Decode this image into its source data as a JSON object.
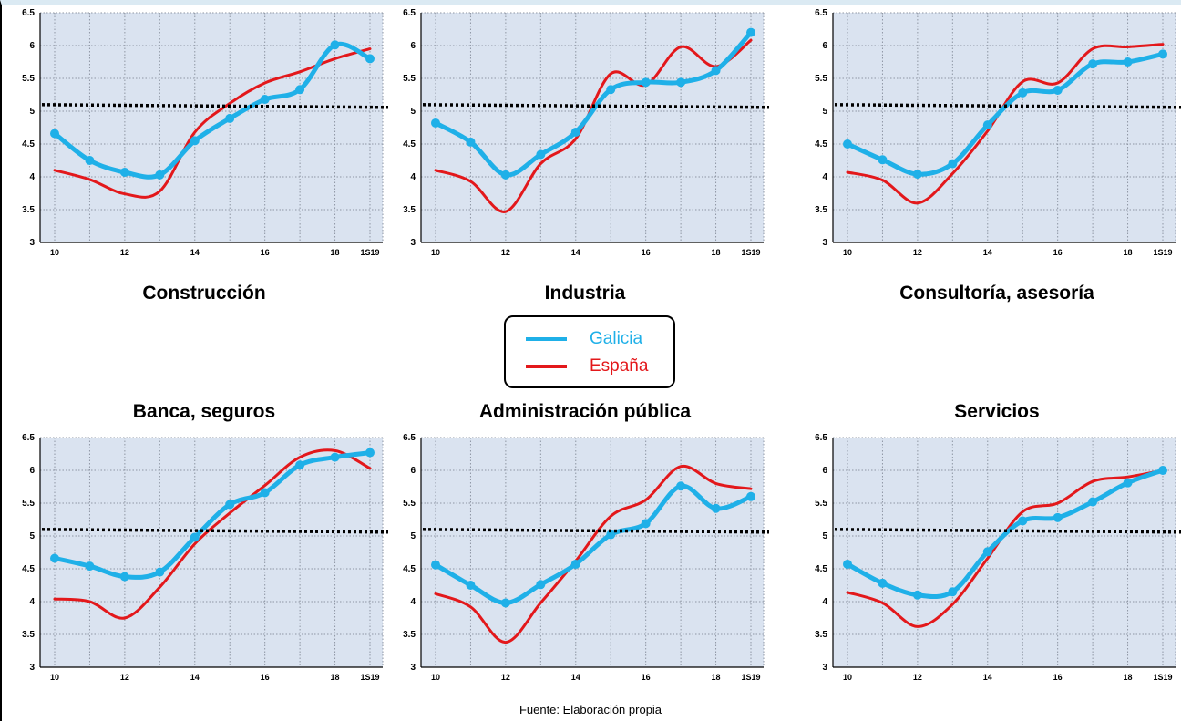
{
  "legend": {
    "galicia": {
      "label": "Galicia",
      "color": "#1fb0e8"
    },
    "espana": {
      "label": "España",
      "color": "#e3181b"
    }
  },
  "source": "Fuente: Elaboración propia",
  "chart_data": [
    {
      "type": "line",
      "title": "Construcción",
      "x": [
        10,
        11,
        12,
        13,
        14,
        15,
        16,
        17,
        18,
        19
      ],
      "x_tick_labels": [
        "10",
        "12",
        "14",
        "16",
        "18",
        "1S19"
      ],
      "ylim": [
        3,
        6.5
      ],
      "y_ticks": [
        "3",
        "3.5",
        "4",
        "4.5",
        "5",
        "5.5",
        "6",
        "6.5"
      ],
      "reference_line": 5.1,
      "grid": true,
      "series": [
        {
          "name": "Galicia",
          "values": [
            4.66,
            4.25,
            4.07,
            4.03,
            4.55,
            4.89,
            5.18,
            5.33,
            6.01,
            5.8
          ]
        },
        {
          "name": "España",
          "values": [
            4.1,
            3.96,
            3.74,
            3.78,
            4.68,
            5.12,
            5.43,
            5.6,
            5.8,
            5.95
          ]
        }
      ]
    },
    {
      "type": "line",
      "title": "Industria",
      "x": [
        10,
        11,
        12,
        13,
        14,
        15,
        16,
        17,
        18,
        19
      ],
      "x_tick_labels": [
        "10",
        "12",
        "14",
        "16",
        "18",
        "1S19"
      ],
      "ylim": [
        3,
        6.5
      ],
      "y_ticks": [
        "3",
        "3.5",
        "4",
        "4.5",
        "5",
        "5.5",
        "6",
        "6.5"
      ],
      "reference_line": 5.1,
      "grid": true,
      "series": [
        {
          "name": "Galicia",
          "values": [
            4.82,
            4.53,
            4.03,
            4.34,
            4.68,
            5.33,
            5.44,
            5.44,
            5.62,
            6.2
          ]
        },
        {
          "name": "España",
          "values": [
            4.1,
            3.93,
            3.47,
            4.2,
            4.58,
            5.57,
            5.4,
            5.98,
            5.68,
            6.08
          ]
        }
      ]
    },
    {
      "type": "line",
      "title": "Consultoría, asesoría",
      "x": [
        10,
        11,
        12,
        13,
        14,
        15,
        16,
        17,
        18,
        19
      ],
      "x_tick_labels": [
        "10",
        "12",
        "14",
        "16",
        "18",
        "1S19"
      ],
      "ylim": [
        3,
        6.5
      ],
      "y_ticks": [
        "3",
        "3.5",
        "4",
        "4.5",
        "5",
        "5.5",
        "6",
        "6.5"
      ],
      "reference_line": 5.1,
      "grid": true,
      "series": [
        {
          "name": "Galicia",
          "values": [
            4.5,
            4.26,
            4.04,
            4.2,
            4.79,
            5.28,
            5.32,
            5.72,
            5.75,
            5.87
          ]
        },
        {
          "name": "España",
          "values": [
            4.07,
            3.95,
            3.6,
            4.05,
            4.7,
            5.45,
            5.43,
            5.95,
            5.98,
            6.02
          ]
        }
      ]
    },
    {
      "type": "line",
      "title": "Banca, seguros",
      "x": [
        10,
        11,
        12,
        13,
        14,
        15,
        16,
        17,
        18,
        19
      ],
      "x_tick_labels": [
        "10",
        "12",
        "14",
        "16",
        "18",
        "1S19"
      ],
      "ylim": [
        3,
        6.5
      ],
      "y_ticks": [
        "3",
        "3.5",
        "4",
        "4.5",
        "5",
        "5.5",
        "6",
        "6.5"
      ],
      "reference_line": 5.1,
      "grid": true,
      "series": [
        {
          "name": "Galicia",
          "values": [
            4.66,
            4.54,
            4.38,
            4.45,
            4.98,
            5.48,
            5.66,
            6.08,
            6.2,
            6.27
          ]
        },
        {
          "name": "España",
          "values": [
            4.04,
            4.0,
            3.75,
            4.22,
            4.88,
            5.35,
            5.77,
            6.2,
            6.3,
            6.03
          ]
        }
      ]
    },
    {
      "type": "line",
      "title": "Administración pública",
      "x": [
        10,
        11,
        12,
        13,
        14,
        15,
        16,
        17,
        18,
        19
      ],
      "x_tick_labels": [
        "10",
        "12",
        "14",
        "16",
        "18",
        "1S19"
      ],
      "ylim": [
        3,
        6.5
      ],
      "y_ticks": [
        "3",
        "3.5",
        "4",
        "4.5",
        "5",
        "5.5",
        "6",
        "6.5"
      ],
      "reference_line": 5.1,
      "grid": true,
      "series": [
        {
          "name": "Galicia",
          "values": [
            4.56,
            4.25,
            3.98,
            4.26,
            4.57,
            5.02,
            5.19,
            5.76,
            5.42,
            5.6
          ]
        },
        {
          "name": "España",
          "values": [
            4.12,
            3.92,
            3.38,
            3.98,
            4.62,
            5.3,
            5.55,
            6.06,
            5.8,
            5.72
          ]
        }
      ]
    },
    {
      "type": "line",
      "title": "Servicios",
      "x": [
        10,
        11,
        12,
        13,
        14,
        15,
        16,
        17,
        18,
        19
      ],
      "x_tick_labels": [
        "10",
        "12",
        "14",
        "16",
        "18",
        "1S19"
      ],
      "ylim": [
        3,
        6.5
      ],
      "y_ticks": [
        "3",
        "3.5",
        "4",
        "4.5",
        "5",
        "5.5",
        "6",
        "6.5"
      ],
      "reference_line": 5.1,
      "grid": true,
      "series": [
        {
          "name": "Galicia",
          "values": [
            4.57,
            4.28,
            4.1,
            4.15,
            4.76,
            5.23,
            5.28,
            5.52,
            5.81,
            6.0
          ]
        },
        {
          "name": "España",
          "values": [
            4.14,
            3.98,
            3.62,
            3.96,
            4.66,
            5.37,
            5.5,
            5.83,
            5.9,
            6.0
          ]
        }
      ]
    }
  ]
}
